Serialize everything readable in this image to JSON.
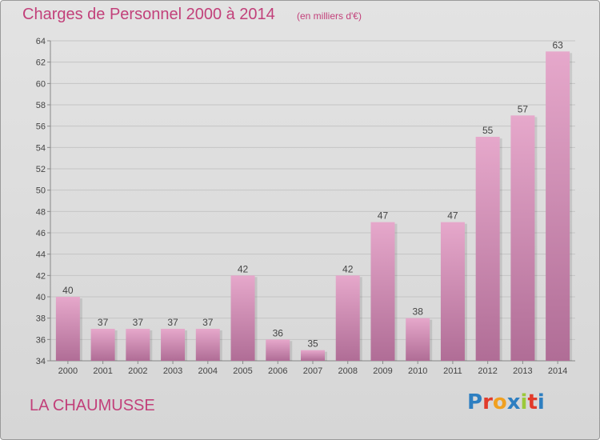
{
  "header": {
    "title": "Charges de Personnel 2000 à 2014",
    "subtitle": "(en milliers d'€)"
  },
  "footer": {
    "town": "LA CHAUMUSSE",
    "logo": "Proxiti"
  },
  "colors": {
    "title": "#c2407a",
    "bar_top": "#e6a8cb",
    "bar_bottom": "#b06d96",
    "logo_letters": [
      "#2e7fc1",
      "#e23b2a",
      "#f0a020",
      "#2e7fc1",
      "#9bc93a",
      "#e23b2a",
      "#2e7fc1"
    ]
  },
  "chart_data": {
    "type": "bar",
    "categories": [
      "2000",
      "2001",
      "2002",
      "2003",
      "2004",
      "2005",
      "2006",
      "2007",
      "2008",
      "2009",
      "2010",
      "2011",
      "2012",
      "2013",
      "2014"
    ],
    "values": [
      40,
      37,
      37,
      37,
      37,
      42,
      36,
      35,
      42,
      47,
      38,
      47,
      55,
      57,
      63
    ],
    "ylim": [
      34,
      64
    ],
    "yticks": [
      34,
      36,
      38,
      40,
      42,
      44,
      46,
      48,
      50,
      52,
      54,
      56,
      58,
      60,
      62,
      64
    ],
    "grid": true,
    "data_labels": true
  }
}
